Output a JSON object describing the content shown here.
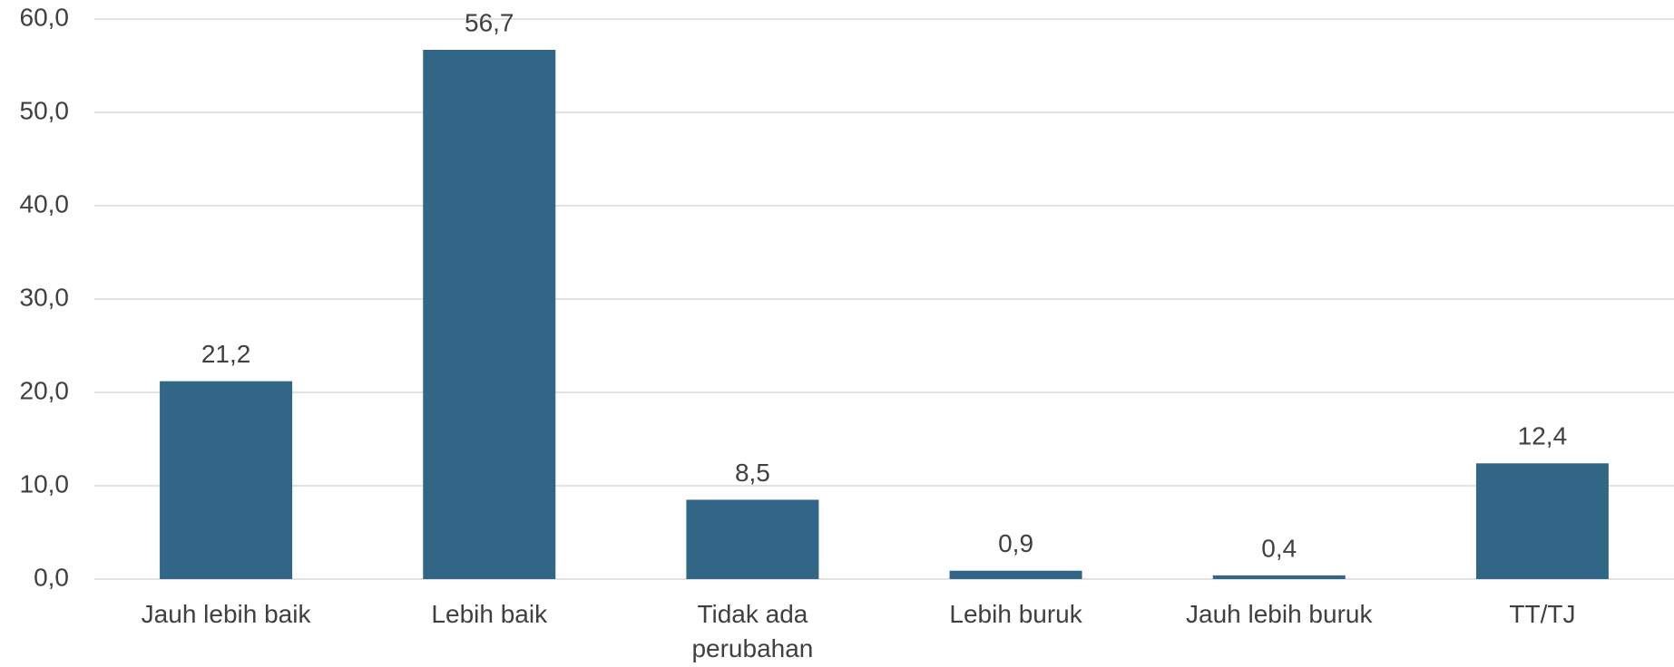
{
  "chart_data": {
    "type": "bar",
    "categories": [
      "Jauh lebih baik",
      "Lebih baik",
      "Tidak ada perubahan",
      "Lebih buruk",
      "Jauh lebih buruk",
      "TT/TJ"
    ],
    "values": [
      21.2,
      56.7,
      8.5,
      0.9,
      0.4,
      12.4
    ],
    "value_labels": [
      "21,2",
      "56,7",
      "8,5",
      "0,9",
      "0,4",
      "12,4"
    ],
    "color": "#326686",
    "ylim": [
      0,
      60
    ],
    "yticks": [
      {
        "value": 0,
        "label": "0,0"
      },
      {
        "value": 10,
        "label": "10,0"
      },
      {
        "value": 20,
        "label": "20,0"
      },
      {
        "value": 30,
        "label": "30,0"
      },
      {
        "value": 40,
        "label": "40,0"
      },
      {
        "value": 50,
        "label": "50,0"
      },
      {
        "value": 60,
        "label": "60,0"
      }
    ],
    "grid": true
  }
}
